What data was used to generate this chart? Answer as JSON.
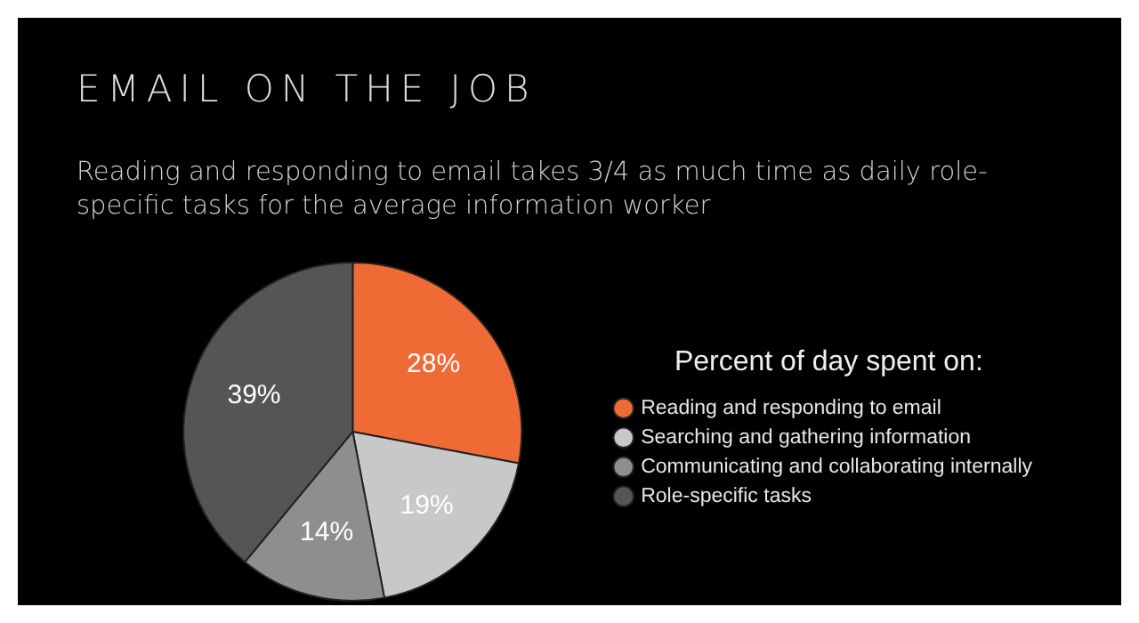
{
  "chart_data": {
    "type": "pie",
    "title": "EMAIL ON THE JOB",
    "subtitle": "Reading and responding to email takes 3/4 as much time as daily role-specific tasks for the average information worker",
    "legend_title": "Percent of day spent on:",
    "categories": [
      "Reading and responding to email",
      "Searching and gathering information",
      "Communicating and collaborating internally",
      "Role-specific tasks"
    ],
    "values": [
      28,
      19,
      14,
      39
    ],
    "value_labels": [
      "28%",
      "19%",
      "14%",
      "39%"
    ],
    "colors": [
      "#f06a35",
      "#c8c8c8",
      "#8e8e8e",
      "#555555"
    ],
    "legend": "right"
  }
}
